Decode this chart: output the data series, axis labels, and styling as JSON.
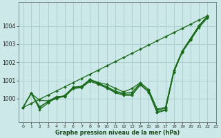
{
  "xlabel": "Graphe pression niveau de la mer (hPa)",
  "bg_color": "#cce8e8",
  "grid_color": "#aacccc",
  "line_color": "#1a6b1a",
  "x_ticks": [
    0,
    1,
    2,
    3,
    4,
    5,
    6,
    7,
    8,
    9,
    10,
    11,
    12,
    13,
    14,
    15,
    16,
    17,
    18,
    19,
    20,
    21,
    22,
    23
  ],
  "ylim": [
    998.7,
    1005.3
  ],
  "yticks": [
    1000,
    1001,
    1002,
    1003,
    1004
  ],
  "straight_line": [
    999.5,
    999.73,
    999.96,
    1000.19,
    1000.42,
    1000.65,
    1000.88,
    1001.11,
    1001.34,
    1001.57,
    1001.8,
    1002.03,
    1002.26,
    1002.49,
    1002.72,
    1002.95,
    1003.18,
    1003.41,
    1003.64,
    1003.87,
    1004.1,
    1004.33,
    1004.56
  ],
  "wiggly1": [
    999.5,
    1000.3,
    999.5,
    999.85,
    1000.1,
    1000.15,
    1000.62,
    1000.65,
    1001.05,
    1000.85,
    1000.65,
    1000.42,
    1000.28,
    1000.35,
    1000.85,
    1000.48,
    999.38,
    999.45,
    1001.55,
    1002.62,
    1003.32,
    1004.02,
    1004.55
  ],
  "wiggly2": [
    999.5,
    1000.28,
    999.9,
    999.88,
    999.98,
    1000.18,
    1000.62,
    1000.68,
    1001.05,
    1000.88,
    1000.78,
    1000.57,
    1000.37,
    1000.55,
    1000.88,
    1000.48,
    999.42,
    999.52,
    1001.55,
    1002.62,
    1003.32,
    1004.02,
    1004.52
  ],
  "wiggly3": [
    999.5,
    1000.28,
    999.4,
    999.75,
    1000.05,
    1000.1,
    1000.55,
    1000.6,
    1000.95,
    1000.78,
    1000.58,
    1000.32,
    1000.18,
    1000.18,
    1000.75,
    1000.35,
    999.22,
    999.35,
    1001.45,
    1002.55,
    1003.22,
    1003.92,
    1004.45
  ],
  "wiggly4": [
    999.5,
    1000.28,
    999.55,
    999.82,
    1000.08,
    1000.12,
    1000.58,
    1000.62,
    1001.02,
    1000.82,
    1000.62,
    1000.38,
    1000.24,
    1000.25,
    1000.78,
    1000.38,
    999.28,
    999.38,
    1001.48,
    1002.58,
    1003.28,
    1003.98,
    1004.48
  ]
}
